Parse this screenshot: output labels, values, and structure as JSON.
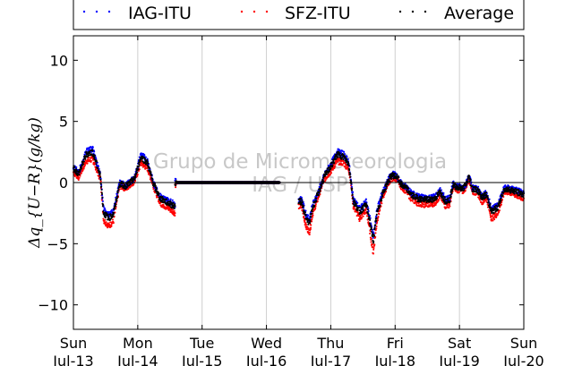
{
  "chart_data": {
    "type": "scatter",
    "ylabel": "Δq_{U−R}(g/kg)",
    "ylim": [
      -12,
      12
    ],
    "yticks": [
      10,
      5,
      0,
      -5,
      -10
    ],
    "ytick_labels": [
      "10",
      "5",
      "0",
      "−5",
      "−10"
    ],
    "xlim": [
      0,
      7
    ],
    "xticks": [
      {
        "day": "Sun",
        "date": "Jul-13"
      },
      {
        "day": "Mon",
        "date": "Jul-14"
      },
      {
        "day": "Tue",
        "date": "Jul-15"
      },
      {
        "day": "Wed",
        "date": "Jul-16"
      },
      {
        "day": "Thu",
        "date": "Jul-17"
      },
      {
        "day": "Fri",
        "date": "Jul-18"
      },
      {
        "day": "Sat",
        "date": "Jul-19"
      },
      {
        "day": "Sun",
        "date": "Jul-20"
      }
    ],
    "grid": "vertical",
    "zero_line": true,
    "legend_placement": "top",
    "watermark": [
      "Grupo de Micrometeorologia",
      "IAG / USP"
    ],
    "series": [
      {
        "name": "IAG-ITU",
        "color": "#0000ff",
        "offset": 0.15
      },
      {
        "name": "SFZ-ITU",
        "color": "#ff0000",
        "offset": -0.35
      },
      {
        "name": "Average",
        "color": "#000000",
        "offset": 0.0
      }
    ],
    "segments": [
      {
        "x": [
          0.0,
          0.08,
          0.2,
          0.3,
          0.42,
          0.47,
          0.55,
          0.62,
          0.72,
          0.82,
          0.95,
          1.05,
          1.15,
          1.25,
          1.35,
          1.45,
          1.52,
          1.58
        ],
        "y": [
          1.2,
          0.7,
          2.3,
          2.5,
          0.5,
          -2.5,
          -2.9,
          -2.6,
          -0.1,
          -0.3,
          0.3,
          2.1,
          1.6,
          -0.2,
          -1.3,
          -1.6,
          -1.8,
          -2.0
        ]
      },
      {
        "x": [
          1.58,
          2.0,
          2.5,
          3.0,
          3.2
        ],
        "y": [
          0.0,
          0.0,
          0.0,
          0.0,
          0.0
        ]
      },
      {
        "x": [
          3.5,
          3.55,
          3.62,
          3.67,
          3.72,
          3.8,
          3.9,
          4.0,
          4.1,
          4.2,
          4.28,
          4.35,
          4.45,
          4.55,
          4.6,
          4.66,
          4.72,
          4.8,
          4.9,
          4.95,
          5.02,
          5.1,
          5.18,
          5.25,
          5.35,
          5.45,
          5.55,
          5.62,
          5.7,
          5.78,
          5.85,
          5.9,
          5.98,
          6.05,
          6.1,
          6.15,
          6.2,
          6.28,
          6.35,
          6.42,
          6.5,
          6.6,
          6.7,
          6.8,
          6.9,
          7.0
        ],
        "y": [
          -1.5,
          -1.6,
          -3.0,
          -3.3,
          -2.0,
          -1.0,
          0.5,
          1.3,
          2.3,
          2.1,
          1.5,
          -1.5,
          -2.4,
          -1.8,
          -3.0,
          -4.8,
          -2.5,
          -1.0,
          0.2,
          0.6,
          0.5,
          -0.2,
          -0.5,
          -1.0,
          -1.3,
          -1.4,
          -1.4,
          -1.3,
          -0.8,
          -1.5,
          -1.4,
          -0.2,
          -0.4,
          -0.5,
          -0.2,
          0.5,
          -0.5,
          -0.6,
          -1.2,
          -1.0,
          -2.4,
          -2.0,
          -0.5,
          -0.6,
          -0.8,
          -1.0
        ]
      }
    ]
  }
}
